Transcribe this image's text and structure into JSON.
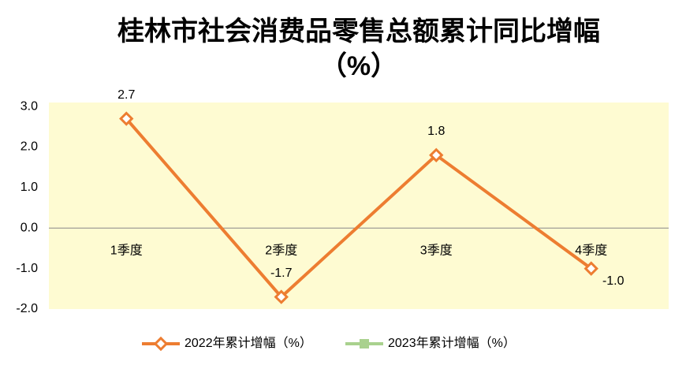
{
  "chart_data": {
    "type": "line",
    "title": [
      "桂林市社会消费品零售总额累计同比增幅",
      "（%）"
    ],
    "categories": [
      "1季度",
      "2季度",
      "3季度",
      "4季度"
    ],
    "series": [
      {
        "name": "2022年累计增幅（%）",
        "color": "#ed7d31",
        "values": [
          2.7,
          -1.7,
          1.8,
          -1.0
        ],
        "value_labels": [
          "2.7",
          "-1.7",
          "1.8",
          "-1.0"
        ]
      },
      {
        "name": "2023年累计增幅（%）",
        "color": "#a9d18e",
        "values": [
          null,
          null,
          null,
          null
        ]
      }
    ],
    "ylim": [
      -2,
      3.1
    ],
    "yticks": [
      {
        "value": 3,
        "label": "3.0"
      },
      {
        "value": 2,
        "label": "2.0"
      },
      {
        "value": 1,
        "label": "1.0"
      },
      {
        "value": 0,
        "label": "0.0"
      },
      {
        "value": -1,
        "label": "-1.0"
      },
      {
        "value": -2,
        "label": "-2.0"
      }
    ],
    "plot_background": "#fefbd2",
    "legend": "bottom"
  }
}
